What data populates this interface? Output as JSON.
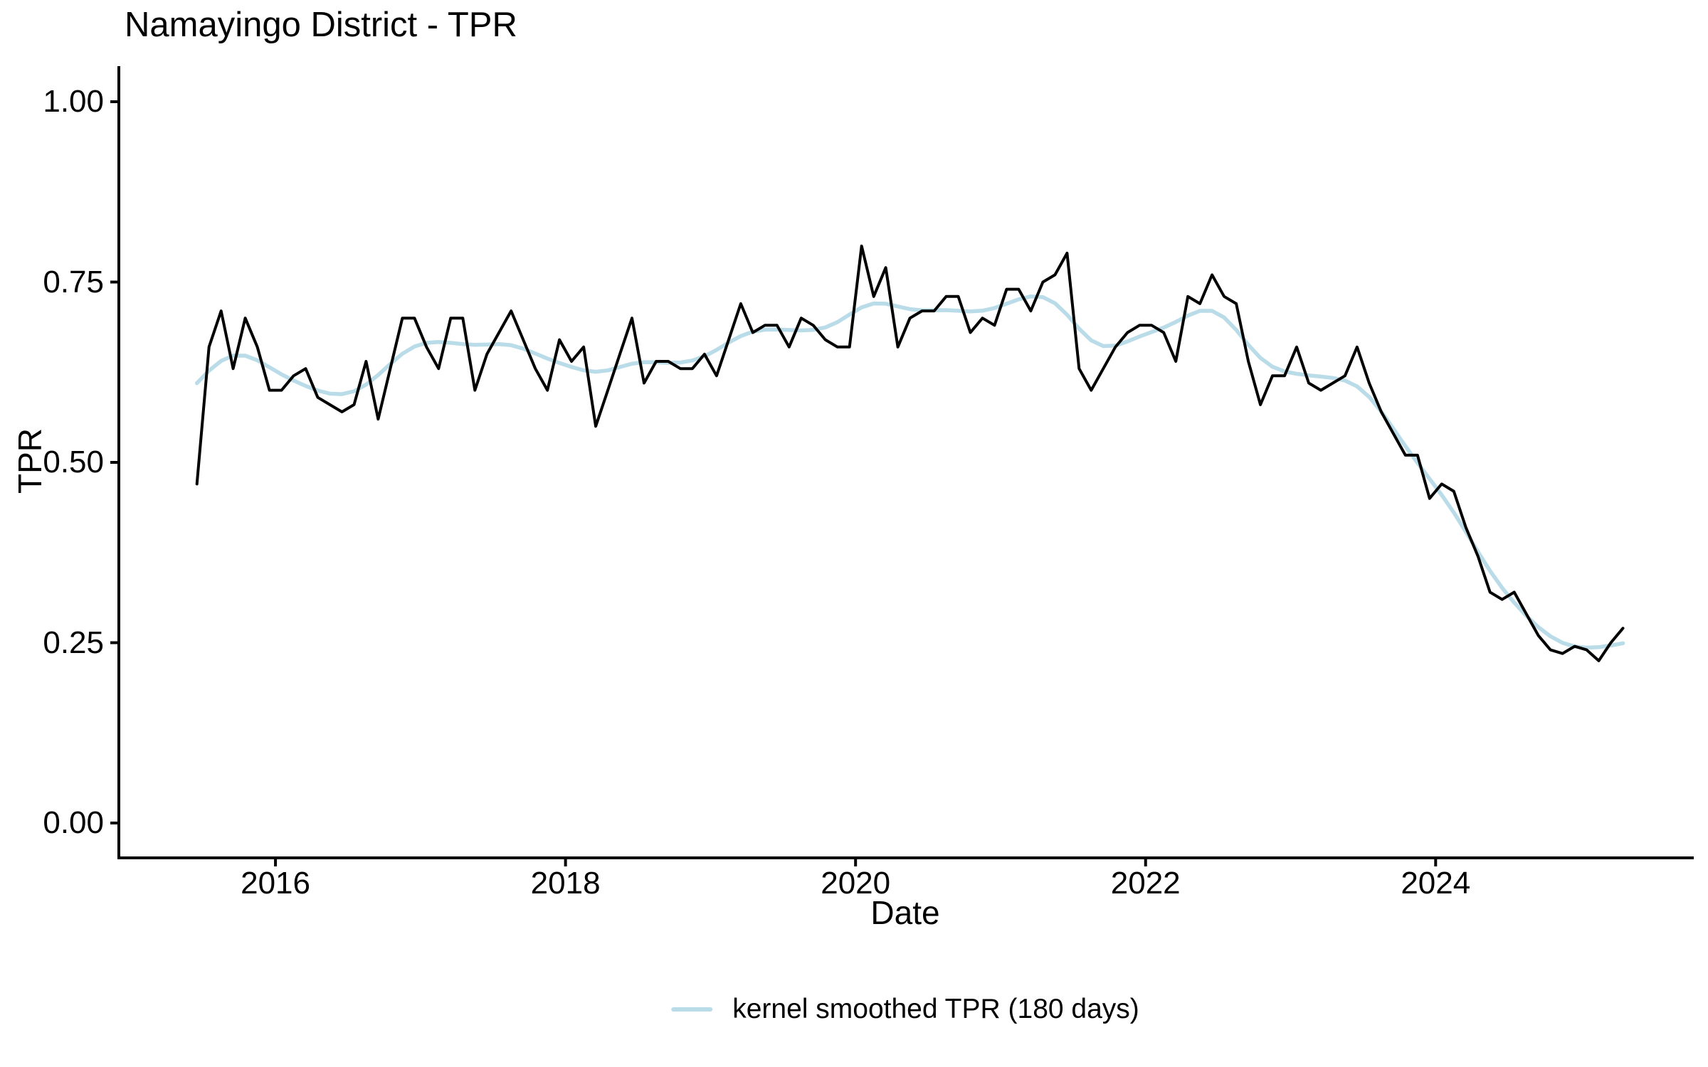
{
  "title": "Namayingo District - TPR",
  "axes": {
    "x_label": "Date",
    "y_label": "TPR"
  },
  "legend": {
    "items": [
      {
        "label": "kernel smoothed TPR (180 days)",
        "color": "#b9dce8"
      }
    ]
  },
  "colors": {
    "raw_line": "#000000",
    "smoothed_line": "#b9dce8",
    "axis": "#000000",
    "text": "#000000",
    "background": "#ffffff"
  },
  "chart_data": {
    "type": "line",
    "title": "Namayingo District - TPR",
    "xlabel": "Date",
    "ylabel": "TPR",
    "grid": false,
    "legend_position": "bottom-center",
    "xlim_years": [
      2014.92,
      2025.78
    ],
    "ylim": [
      0,
      1
    ],
    "x_ticks_years": [
      2016,
      2018,
      2020,
      2022,
      2024
    ],
    "x_tick_labels": [
      "2016",
      "2018",
      "2020",
      "2022",
      "2024"
    ],
    "y_ticks": [
      0,
      0.25,
      0.5,
      0.75,
      1
    ],
    "y_tick_labels": [
      "0.00",
      "0.25",
      "0.50",
      "0.75",
      "1.00"
    ],
    "series": [
      {
        "name": "TPR",
        "kind": "monthly_raw",
        "color": "#000000",
        "stroke_width": 4,
        "start_month": "2015-06",
        "frequency": "monthly",
        "values": [
          0.47,
          0.66,
          0.71,
          0.63,
          0.7,
          0.66,
          0.6,
          0.6,
          0.62,
          0.63,
          0.59,
          0.58,
          0.57,
          0.58,
          0.64,
          0.56,
          0.63,
          0.7,
          0.7,
          0.66,
          0.63,
          0.7,
          0.7,
          0.6,
          0.65,
          0.68,
          0.71,
          0.67,
          0.63,
          0.6,
          0.67,
          0.64,
          0.66,
          0.55,
          0.6,
          0.65,
          0.7,
          0.61,
          0.64,
          0.64,
          0.63,
          0.63,
          0.65,
          0.62,
          0.67,
          0.72,
          0.68,
          0.69,
          0.69,
          0.66,
          0.7,
          0.69,
          0.67,
          0.66,
          0.66,
          0.8,
          0.73,
          0.77,
          0.66,
          0.7,
          0.71,
          0.71,
          0.73,
          0.73,
          0.68,
          0.7,
          0.69,
          0.74,
          0.74,
          0.71,
          0.75,
          0.76,
          0.79,
          0.63,
          0.6,
          0.63,
          0.66,
          0.68,
          0.69,
          0.69,
          0.68,
          0.64,
          0.73,
          0.72,
          0.76,
          0.73,
          0.72,
          0.64,
          0.58,
          0.62,
          0.62,
          0.66,
          0.61,
          0.6,
          0.61,
          0.62,
          0.66,
          0.61,
          0.57,
          0.54,
          0.51,
          0.51,
          0.45,
          0.47,
          0.46,
          0.41,
          0.37,
          0.32,
          0.31,
          0.32,
          0.29,
          0.26,
          0.24,
          0.235,
          0.245,
          0.24,
          0.225,
          0.25,
          0.27
        ]
      },
      {
        "name": "kernel smoothed TPR (180 days)",
        "kind": "kernel_smoothed",
        "color": "#b9dce8",
        "stroke_width": 5.5,
        "bandwidth_days": 180,
        "derived_from": "TPR"
      }
    ]
  }
}
